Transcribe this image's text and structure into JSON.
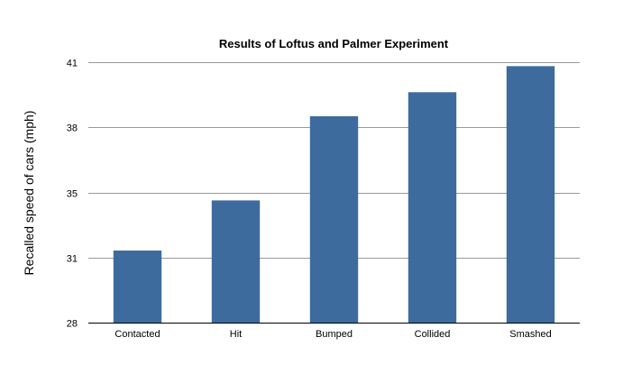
{
  "chart_data": {
    "type": "bar",
    "title": "Results of Loftus and Palmer Experiment",
    "xlabel": "",
    "ylabel": "Recalled speed of cars (mph)",
    "categories": [
      "Contacted",
      "Hit",
      "Bumped",
      "Collided",
      "Smashed"
    ],
    "values": [
      31.6,
      34.1,
      38.3,
      39.5,
      40.8
    ],
    "y_ticks": [
      "28",
      "31",
      "35",
      "38",
      "41"
    ],
    "ylim": [
      28,
      41
    ],
    "grid": true,
    "legend": "none",
    "bar_color": "#3d6b9e"
  }
}
